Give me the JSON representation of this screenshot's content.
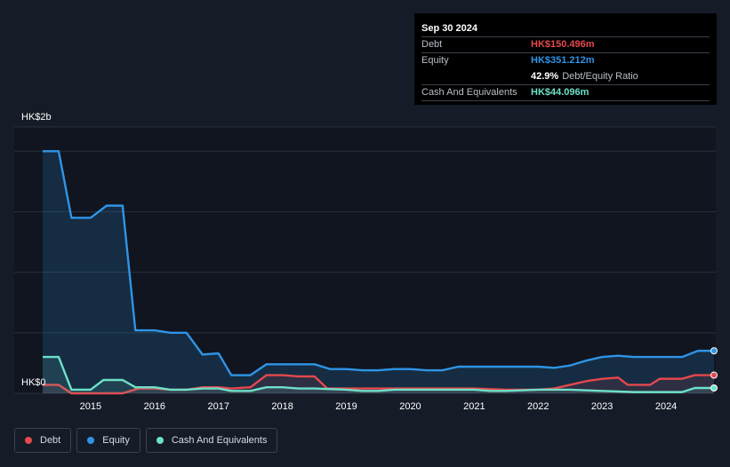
{
  "colors": {
    "debt": "#e5484d",
    "equity": "#2f94e6",
    "cash": "#6ee0c8",
    "background": "#151b27",
    "plot": "#10151f",
    "grid": "#2a303c"
  },
  "tooltip": {
    "date": "Sep 30 2024",
    "rows": [
      {
        "label": "Debt",
        "value": "HK$150.496m",
        "color": "#e5484d"
      },
      {
        "label": "Equity",
        "value": "HK$351.212m",
        "color": "#2f94e6"
      },
      {
        "label": "",
        "value": "42.9%",
        "suffix": "Debt/Equity Ratio",
        "color": "#ffffff"
      },
      {
        "label": "Cash And Equivalents",
        "value": "HK$44.096m",
        "color": "#6ee0c8"
      }
    ]
  },
  "legend": [
    {
      "label": "Debt",
      "icon": "debt-dot-icon",
      "color": "#e5484d"
    },
    {
      "label": "Equity",
      "icon": "equity-dot-icon",
      "color": "#2f94e6"
    },
    {
      "label": "Cash And Equivalents",
      "icon": "cash-dot-icon",
      "color": "#6ee0c8"
    }
  ],
  "chart_data": {
    "type": "area",
    "ylabel_top": "HK$2b",
    "ylabel_bottom": "HK$0",
    "ylim": [
      0,
      2.2
    ],
    "xlim": [
      2014.25,
      2024.75
    ],
    "x_ticks": [
      2015,
      2016,
      2017,
      2018,
      2019,
      2020,
      2021,
      2022,
      2023,
      2024
    ],
    "x_tick_labels": [
      "2015",
      "2016",
      "2017",
      "2018",
      "2019",
      "2020",
      "2021",
      "2022",
      "2023",
      "2024"
    ],
    "series": [
      {
        "name": "Equity",
        "unit": "HK$b",
        "points": [
          [
            2014.25,
            2.0
          ],
          [
            2014.5,
            2.0
          ],
          [
            2014.7,
            1.45
          ],
          [
            2015.0,
            1.45
          ],
          [
            2015.25,
            1.55
          ],
          [
            2015.5,
            1.55
          ],
          [
            2015.7,
            0.52
          ],
          [
            2016.0,
            0.52
          ],
          [
            2016.25,
            0.5
          ],
          [
            2016.5,
            0.5
          ],
          [
            2016.75,
            0.32
          ],
          [
            2017.0,
            0.33
          ],
          [
            2017.2,
            0.15
          ],
          [
            2017.5,
            0.15
          ],
          [
            2017.75,
            0.24
          ],
          [
            2018.0,
            0.24
          ],
          [
            2018.5,
            0.24
          ],
          [
            2018.75,
            0.2
          ],
          [
            2019.0,
            0.2
          ],
          [
            2019.25,
            0.19
          ],
          [
            2019.5,
            0.19
          ],
          [
            2019.75,
            0.2
          ],
          [
            2020.0,
            0.2
          ],
          [
            2020.25,
            0.19
          ],
          [
            2020.5,
            0.19
          ],
          [
            2020.75,
            0.22
          ],
          [
            2021.0,
            0.22
          ],
          [
            2021.5,
            0.22
          ],
          [
            2022.0,
            0.22
          ],
          [
            2022.25,
            0.21
          ],
          [
            2022.5,
            0.23
          ],
          [
            2022.75,
            0.27
          ],
          [
            2023.0,
            0.3
          ],
          [
            2023.25,
            0.31
          ],
          [
            2023.5,
            0.3
          ],
          [
            2023.75,
            0.3
          ],
          [
            2024.0,
            0.3
          ],
          [
            2024.25,
            0.3
          ],
          [
            2024.5,
            0.351
          ],
          [
            2024.75,
            0.351
          ]
        ]
      },
      {
        "name": "Debt",
        "unit": "HK$b",
        "points": [
          [
            2014.25,
            0.07
          ],
          [
            2014.5,
            0.07
          ],
          [
            2014.7,
            0.0
          ],
          [
            2015.0,
            0.0
          ],
          [
            2015.5,
            0.0
          ],
          [
            2015.75,
            0.04
          ],
          [
            2016.0,
            0.04
          ],
          [
            2016.25,
            0.03
          ],
          [
            2016.5,
            0.03
          ],
          [
            2016.75,
            0.05
          ],
          [
            2017.0,
            0.05
          ],
          [
            2017.2,
            0.04
          ],
          [
            2017.5,
            0.05
          ],
          [
            2017.75,
            0.15
          ],
          [
            2018.0,
            0.15
          ],
          [
            2018.25,
            0.14
          ],
          [
            2018.5,
            0.14
          ],
          [
            2018.7,
            0.04
          ],
          [
            2019.0,
            0.04
          ],
          [
            2019.5,
            0.04
          ],
          [
            2020.0,
            0.04
          ],
          [
            2020.5,
            0.04
          ],
          [
            2021.0,
            0.04
          ],
          [
            2021.5,
            0.03
          ],
          [
            2022.0,
            0.03
          ],
          [
            2022.25,
            0.04
          ],
          [
            2022.5,
            0.07
          ],
          [
            2022.75,
            0.1
          ],
          [
            2023.0,
            0.12
          ],
          [
            2023.25,
            0.13
          ],
          [
            2023.4,
            0.07
          ],
          [
            2023.75,
            0.07
          ],
          [
            2023.9,
            0.12
          ],
          [
            2024.25,
            0.12
          ],
          [
            2024.45,
            0.15
          ],
          [
            2024.75,
            0.15
          ]
        ]
      },
      {
        "name": "Cash And Equivalents",
        "unit": "HK$b",
        "points": [
          [
            2014.25,
            0.3
          ],
          [
            2014.5,
            0.3
          ],
          [
            2014.7,
            0.03
          ],
          [
            2015.0,
            0.03
          ],
          [
            2015.2,
            0.11
          ],
          [
            2015.5,
            0.11
          ],
          [
            2015.7,
            0.05
          ],
          [
            2016.0,
            0.05
          ],
          [
            2016.25,
            0.03
          ],
          [
            2016.5,
            0.03
          ],
          [
            2016.75,
            0.04
          ],
          [
            2017.0,
            0.04
          ],
          [
            2017.2,
            0.02
          ],
          [
            2017.5,
            0.02
          ],
          [
            2017.75,
            0.05
          ],
          [
            2018.0,
            0.05
          ],
          [
            2018.25,
            0.04
          ],
          [
            2018.5,
            0.04
          ],
          [
            2019.0,
            0.03
          ],
          [
            2019.25,
            0.02
          ],
          [
            2019.5,
            0.02
          ],
          [
            2019.75,
            0.03
          ],
          [
            2020.0,
            0.03
          ],
          [
            2020.5,
            0.03
          ],
          [
            2021.0,
            0.03
          ],
          [
            2021.25,
            0.02
          ],
          [
            2021.5,
            0.02
          ],
          [
            2022.0,
            0.03
          ],
          [
            2022.5,
            0.03
          ],
          [
            2023.0,
            0.02
          ],
          [
            2023.5,
            0.01
          ],
          [
            2024.0,
            0.01
          ],
          [
            2024.25,
            0.01
          ],
          [
            2024.45,
            0.044
          ],
          [
            2024.75,
            0.044
          ]
        ]
      }
    ]
  }
}
